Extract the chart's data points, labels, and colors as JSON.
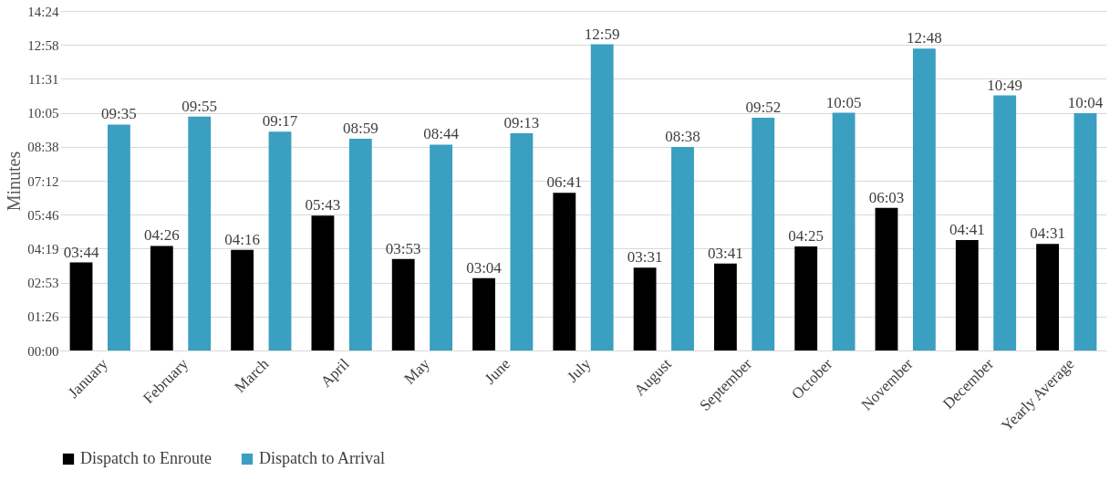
{
  "chart_data": {
    "type": "bar",
    "ylabel": "Minutes",
    "categories": [
      "January",
      "February",
      "March",
      "April",
      "May",
      "June",
      "July",
      "August",
      "September",
      "October",
      "November",
      "December",
      "Yearly Average"
    ],
    "series": [
      {
        "name": "Dispatch to Enroute",
        "color": "#000000",
        "values": [
          3.733,
          4.433,
          4.267,
          5.717,
          3.883,
          3.067,
          6.683,
          3.517,
          3.683,
          4.417,
          6.05,
          4.683,
          4.517
        ],
        "value_labels": [
          "03:44",
          "04:26",
          "04:16",
          "05:43",
          "03:53",
          "03:04",
          "06:41",
          "03:31",
          "03:41",
          "04:25",
          "06:03",
          "04:41",
          "04:31"
        ]
      },
      {
        "name": "Dispatch to Arrival",
        "color": "#3a9fc0",
        "values": [
          9.583,
          9.917,
          9.283,
          8.983,
          8.733,
          9.217,
          12.983,
          8.633,
          9.867,
          10.083,
          12.8,
          10.817,
          10.067
        ],
        "value_labels": [
          "09:35",
          "09:55",
          "09:17",
          "08:59",
          "08:44",
          "09:13",
          "12:59",
          "08:38",
          "09:52",
          "10:05",
          "12:48",
          "10:49",
          "10:04"
        ]
      }
    ],
    "ylim": [
      0,
      14.4
    ],
    "yticks": [
      {
        "value": 0,
        "label": "00:00"
      },
      {
        "value": 1.44,
        "label": "01:26"
      },
      {
        "value": 2.88,
        "label": "02:53"
      },
      {
        "value": 4.32,
        "label": "04:19"
      },
      {
        "value": 5.76,
        "label": "05:46"
      },
      {
        "value": 7.2,
        "label": "07:12"
      },
      {
        "value": 8.64,
        "label": "08:38"
      },
      {
        "value": 10.08,
        "label": "10:05"
      },
      {
        "value": 11.52,
        "label": "11:31"
      },
      {
        "value": 12.96,
        "label": "12:58"
      },
      {
        "value": 14.4,
        "label": "14:24"
      }
    ],
    "grid": "y",
    "legend": "bottom"
  }
}
